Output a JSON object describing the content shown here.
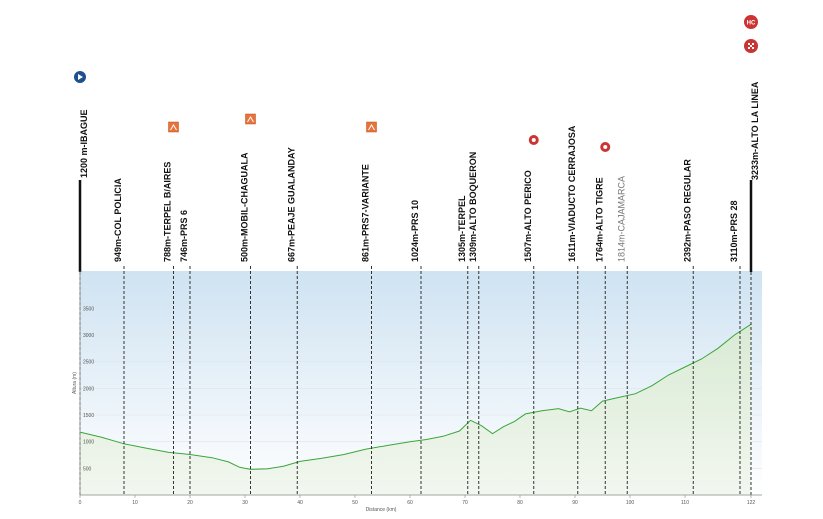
{
  "chart_data": {
    "type": "area",
    "xlabel": "Distance (km)",
    "ylabel": "Altura (m)",
    "xlim": [
      0,
      124
    ],
    "ylim": [
      0,
      4200
    ],
    "x_ticks": [
      0,
      10,
      20,
      30,
      40,
      50,
      60,
      70,
      80,
      90,
      100,
      110,
      122
    ],
    "x_tick_labels": [
      "0",
      "10",
      "20",
      "30",
      "40",
      "50",
      "60",
      "70",
      "80",
      "90",
      "100",
      "110",
      "122"
    ],
    "y_ticks": [
      500,
      1000,
      1500,
      2000,
      2500,
      3000,
      3500
    ],
    "y_tick_labels": [
      "500",
      "1000",
      "1500",
      "2000",
      "2500",
      "3000",
      "3500"
    ],
    "grid": true,
    "colors": {
      "line": "#3aa63a",
      "fill_top": "#d9ead4",
      "band_top": "#cfe3f2",
      "marker_line": "#333333"
    },
    "profile": [
      {
        "x": 0,
        "y": 1180
      },
      {
        "x": 4,
        "y": 1080
      },
      {
        "x": 8,
        "y": 960
      },
      {
        "x": 12,
        "y": 880
      },
      {
        "x": 16,
        "y": 800
      },
      {
        "x": 20,
        "y": 760
      },
      {
        "x": 24,
        "y": 700
      },
      {
        "x": 27,
        "y": 620
      },
      {
        "x": 29,
        "y": 520
      },
      {
        "x": 31,
        "y": 480
      },
      {
        "x": 34,
        "y": 490
      },
      {
        "x": 37,
        "y": 540
      },
      {
        "x": 40,
        "y": 630
      },
      {
        "x": 44,
        "y": 690
      },
      {
        "x": 48,
        "y": 760
      },
      {
        "x": 52,
        "y": 860
      },
      {
        "x": 56,
        "y": 930
      },
      {
        "x": 60,
        "y": 1000
      },
      {
        "x": 63,
        "y": 1040
      },
      {
        "x": 66,
        "y": 1100
      },
      {
        "x": 69,
        "y": 1200
      },
      {
        "x": 71,
        "y": 1400
      },
      {
        "x": 73,
        "y": 1300
      },
      {
        "x": 75,
        "y": 1150
      },
      {
        "x": 77,
        "y": 1280
      },
      {
        "x": 79,
        "y": 1380
      },
      {
        "x": 81,
        "y": 1520
      },
      {
        "x": 84,
        "y": 1580
      },
      {
        "x": 87,
        "y": 1620
      },
      {
        "x": 89,
        "y": 1560
      },
      {
        "x": 91,
        "y": 1630
      },
      {
        "x": 93,
        "y": 1580
      },
      {
        "x": 95,
        "y": 1760
      },
      {
        "x": 98,
        "y": 1830
      },
      {
        "x": 101,
        "y": 1900
      },
      {
        "x": 104,
        "y": 2050
      },
      {
        "x": 107,
        "y": 2250
      },
      {
        "x": 110,
        "y": 2400
      },
      {
        "x": 113,
        "y": 2550
      },
      {
        "x": 116,
        "y": 2750
      },
      {
        "x": 119,
        "y": 3000
      },
      {
        "x": 122,
        "y": 3200
      }
    ],
    "waypoints": [
      {
        "x": 0,
        "label": "1200 m-IBAGUE",
        "style": "start",
        "icon": "start-flag-icon"
      },
      {
        "x": 8,
        "label": "949m-COL POLICIA",
        "style": "bold",
        "icon": ""
      },
      {
        "x": 17,
        "label": "788m-TERPEL B/AIRES",
        "style": "bold",
        "icon": "feed-zone-icon"
      },
      {
        "x": 20,
        "label": "746m-PRS 6",
        "style": "bold",
        "icon": ""
      },
      {
        "x": 31,
        "label": "500m-MOBIL-CHAGUALA",
        "style": "bold",
        "icon": "feed-zone-icon"
      },
      {
        "x": 39.5,
        "label": "667m-PEAJE GUALANDAY",
        "style": "bold",
        "icon": ""
      },
      {
        "x": 53,
        "label": "861m-PRS7-VARIANTE",
        "style": "bold",
        "icon": "feed-zone-icon"
      },
      {
        "x": 62,
        "label": "1024m-PRS 10",
        "style": "bold",
        "icon": ""
      },
      {
        "x": 70.5,
        "label": "1305m-TERPEL",
        "style": "bold",
        "icon": ""
      },
      {
        "x": 72.5,
        "label": "1309m-ALTO BOQUERON",
        "style": "bold",
        "icon": ""
      },
      {
        "x": 82.5,
        "label": "1507m-ALTO PERICO",
        "style": "bold",
        "icon": "climb-3-icon"
      },
      {
        "x": 90.5,
        "label": "1611m-VIADUCTO CERRAJOSA",
        "style": "bold",
        "icon": ""
      },
      {
        "x": 95.5,
        "label": "1764m-ALTO TIGRE",
        "style": "bold",
        "icon": "climb-3-icon"
      },
      {
        "x": 99.5,
        "label": "1814m-CAJAMARCA",
        "style": "light",
        "icon": ""
      },
      {
        "x": 111.5,
        "label": "2392m-PASO REGULAR",
        "style": "bold",
        "icon": ""
      },
      {
        "x": 120,
        "label": "3110m-PRS 28",
        "style": "bold",
        "icon": ""
      },
      {
        "x": 122,
        "label": "3233m-ALTO LA LINEA",
        "style": "finish",
        "icon": "finish-flag-icon"
      }
    ],
    "badges": [
      {
        "label": "HC",
        "icon": "hc-climb-icon",
        "color": "#cc3333"
      },
      {
        "label": "",
        "icon": "finish-checkered-icon",
        "color": "#cc3333"
      }
    ]
  }
}
